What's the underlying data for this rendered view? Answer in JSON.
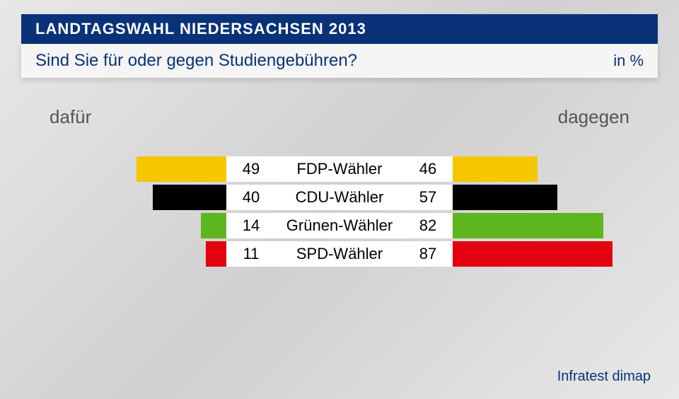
{
  "header": {
    "title": "LANDTAGSWAHL NIEDERSACHSEN 2013",
    "subtitle": "Sind Sie für oder gegen Studiengebühren?",
    "unit": "in %"
  },
  "chart": {
    "type": "diverging-bar",
    "left_label": "dafür",
    "right_label": "dagegen",
    "max_value": 100,
    "bar_scale": 2.6,
    "background_color": "#ffffff",
    "header_blue_bg": "#0a3278",
    "header_blue_text": "#ffffff",
    "header_white_bg": "#f5f5f5",
    "header_white_text": "#0a3278",
    "axis_label_color": "#555555",
    "axis_label_fontsize": 26,
    "value_fontsize": 22,
    "label_fontsize": 22,
    "rows": [
      {
        "label": "FDP-Wähler",
        "left_value": 49,
        "right_value": 46,
        "color": "#f6c600"
      },
      {
        "label": "CDU-Wähler",
        "left_value": 40,
        "right_value": 57,
        "color": "#000000"
      },
      {
        "label": "Grünen-Wähler",
        "left_value": 14,
        "right_value": 82,
        "color": "#5db61e"
      },
      {
        "label": "SPD-Wähler",
        "left_value": 11,
        "right_value": 87,
        "color": "#e3000f"
      }
    ]
  },
  "source": "Infratest dimap"
}
